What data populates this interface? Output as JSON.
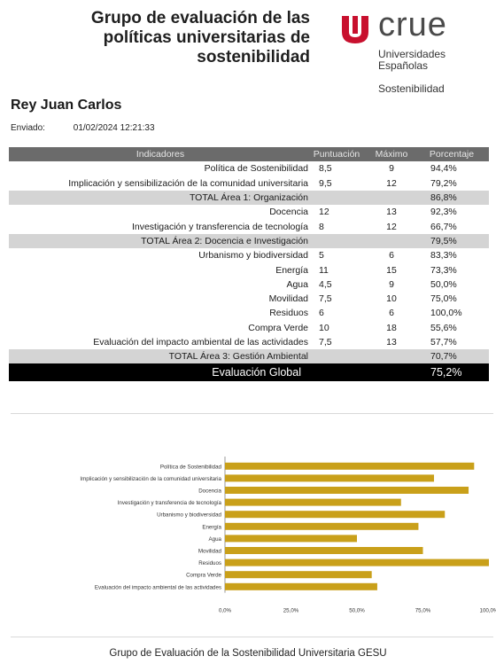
{
  "header": {
    "title_lines": [
      "Grupo de evaluación de las",
      "políticas universitarias de",
      "sostenibilidad"
    ],
    "logo": {
      "word": "crue",
      "sub1": "Universidades",
      "sub2": "Españolas",
      "sub3": "Sostenibilidad",
      "color": "#c8102e"
    }
  },
  "university": "Rey Juan Carlos",
  "sent": {
    "label": "Enviado:",
    "value": "01/02/2024 12:21:33"
  },
  "table": {
    "headers": {
      "name": "Indicadores",
      "score": "Puntuación",
      "max": "Máximo",
      "pct": "Porcentaje"
    },
    "rows": [
      {
        "type": "item",
        "name": "Política de Sostenibilidad",
        "score": "8,5",
        "max": "9",
        "pct": "94,4%"
      },
      {
        "type": "item",
        "name": "Implicación y sensibilización de la comunidad universitaria",
        "score": "9,5",
        "max": "12",
        "pct": "79,2%"
      },
      {
        "type": "total",
        "name": "TOTAL Área 1: Organización",
        "score": "",
        "max": "",
        "pct": "86,8%"
      },
      {
        "type": "item",
        "name": "Docencia",
        "score": "12",
        "max": "13",
        "pct": "92,3%"
      },
      {
        "type": "item",
        "name": "Investigación y transferencia de tecnología",
        "score": "8",
        "max": "12",
        "pct": "66,7%"
      },
      {
        "type": "total",
        "name": "TOTAL Área 2: Docencia e Investigación",
        "score": "",
        "max": "",
        "pct": "79,5%"
      },
      {
        "type": "item",
        "name": "Urbanismo y biodiversidad",
        "score": "5",
        "max": "6",
        "pct": "83,3%"
      },
      {
        "type": "item",
        "name": "Energía",
        "score": "11",
        "max": "15",
        "pct": "73,3%"
      },
      {
        "type": "item",
        "name": "Agua",
        "score": "4,5",
        "max": "9",
        "pct": "50,0%"
      },
      {
        "type": "item",
        "name": "Movilidad",
        "score": "7,5",
        "max": "10",
        "pct": "75,0%"
      },
      {
        "type": "item",
        "name": "Residuos",
        "score": "6",
        "max": "6",
        "pct": "100,0%"
      },
      {
        "type": "item",
        "name": "Compra Verde",
        "score": "10",
        "max": "18",
        "pct": "55,6%"
      },
      {
        "type": "item",
        "name": "Evaluación del impacto ambiental de las actividades",
        "score": "7,5",
        "max": "13",
        "pct": "57,7%"
      },
      {
        "type": "total",
        "name": "TOTAL Área 3: Gestión Ambiental",
        "score": "",
        "max": "",
        "pct": "70,7%"
      },
      {
        "type": "global",
        "name": "Evaluación Global",
        "score": "",
        "max": "",
        "pct": "75,2%"
      }
    ]
  },
  "chart_data": {
    "type": "bar",
    "orientation": "horizontal",
    "categories": [
      "Política de Sostenibilidad",
      "Implicación y sensibilización de la comunidad universitaria",
      "Docencia",
      "Investigación y transferencia de tecnología",
      "Urbanismo y biodiversidad",
      "Energía",
      "Agua",
      "Movilidad",
      "Residuos",
      "Compra Verde",
      "Evaluación del impacto ambiental de las actividades"
    ],
    "values": [
      94.4,
      79.2,
      92.3,
      66.7,
      83.3,
      73.3,
      50.0,
      75.0,
      100.0,
      55.6,
      57.7
    ],
    "xlim": [
      0,
      100
    ],
    "xticks": [
      0,
      25,
      50,
      75,
      100
    ],
    "xtick_labels": [
      "0,0%",
      "25,0%",
      "50,0%",
      "75,0%",
      "100,0%"
    ],
    "bar_color": "#c9a01a",
    "title": "",
    "xlabel": "",
    "ylabel": "",
    "grid": false
  },
  "footer": "Grupo de Evaluación de la Sostenibilidad Universitaria GESU"
}
